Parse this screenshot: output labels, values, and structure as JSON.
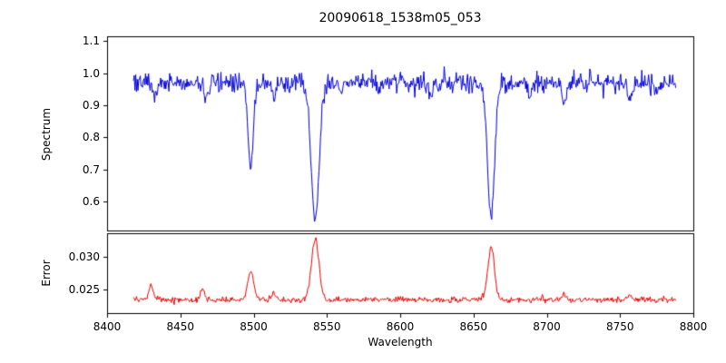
{
  "figure": {
    "background": "#ffffff",
    "axes_color": "#000000"
  },
  "chart_data": [
    {
      "type": "line",
      "panel": "spectrum",
      "title": "20090618_1538m05_053",
      "ylabel": "Spectrum",
      "series_color": "#0000dd",
      "xlim": [
        8400,
        8800
      ],
      "ylim": [
        0.51,
        1.115
      ],
      "xticks": [
        8400,
        8450,
        8500,
        8550,
        8600,
        8650,
        8700,
        8750,
        8800
      ],
      "yticks": [
        0.6,
        0.7,
        0.8,
        0.9,
        1.0,
        1.1
      ],
      "ytick_labels": [
        "0.6",
        "0.7",
        "0.8",
        "0.9",
        "1.0",
        "1.1"
      ],
      "x_start": 8418,
      "x_end": 8788,
      "n_points": 720,
      "continuum": 0.97,
      "noise_sigma": 0.015,
      "absorption_lines": [
        {
          "center": 8498.0,
          "depth": 0.275,
          "sigma": 1.8
        },
        {
          "center": 8542.0,
          "depth": 0.425,
          "sigma": 2.8
        },
        {
          "center": 8662.0,
          "depth": 0.42,
          "sigma": 2.4
        },
        {
          "center": 8433.0,
          "depth": 0.04,
          "sigma": 1.2
        },
        {
          "center": 8468.0,
          "depth": 0.05,
          "sigma": 1.5
        },
        {
          "center": 8514.0,
          "depth": 0.045,
          "sigma": 1.3
        },
        {
          "center": 8559.0,
          "depth": 0.035,
          "sigma": 1.2
        },
        {
          "center": 8585.0,
          "depth": 0.03,
          "sigma": 1.2
        },
        {
          "center": 8621.0,
          "depth": 0.035,
          "sigma": 1.3
        },
        {
          "center": 8688.0,
          "depth": 0.04,
          "sigma": 1.3
        },
        {
          "center": 8712.0,
          "depth": 0.055,
          "sigma": 1.5
        },
        {
          "center": 8757.0,
          "depth": 0.06,
          "sigma": 1.6
        },
        {
          "center": 8775.0,
          "depth": 0.04,
          "sigma": 1.2
        }
      ]
    },
    {
      "type": "line",
      "panel": "error",
      "ylabel": "Error",
      "xlabel": "Wavelength",
      "series_color": "#ee0000",
      "xlim": [
        8400,
        8800
      ],
      "ylim": [
        0.0215,
        0.0335
      ],
      "xticks": [
        8400,
        8450,
        8500,
        8550,
        8600,
        8650,
        8700,
        8750,
        8800
      ],
      "xtick_labels": [
        "8400",
        "8450",
        "8500",
        "8550",
        "8600",
        "8650",
        "8700",
        "8750",
        "8800"
      ],
      "yticks": [
        0.025,
        0.03
      ],
      "ytick_labels": [
        "0.025",
        "0.030"
      ],
      "x_start": 8418,
      "x_end": 8788,
      "n_points": 720,
      "baseline": 0.0235,
      "noise_sigma": 0.00022,
      "peaks": [
        {
          "center": 8498.0,
          "height": 0.0045,
          "sigma": 2.0
        },
        {
          "center": 8542.0,
          "height": 0.009,
          "sigma": 2.6
        },
        {
          "center": 8662.0,
          "height": 0.008,
          "sigma": 2.2
        },
        {
          "center": 8430.0,
          "height": 0.0022,
          "sigma": 1.4
        },
        {
          "center": 8465.0,
          "height": 0.0018,
          "sigma": 1.4
        },
        {
          "center": 8514.0,
          "height": 0.001,
          "sigma": 1.4
        },
        {
          "center": 8712.0,
          "height": 0.0008,
          "sigma": 1.4
        },
        {
          "center": 8757.0,
          "height": 0.0008,
          "sigma": 1.4
        }
      ]
    }
  ]
}
